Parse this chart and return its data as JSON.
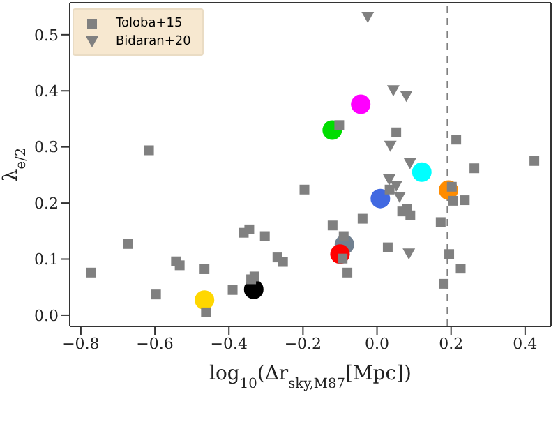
{
  "chart_data": {
    "type": "scatter",
    "xlabel": "log$_{10}$(Δr$_{sky,M87}$[Mpc])",
    "ylabel": "λ$_{e/2}$",
    "xlim": [
      -0.83,
      0.47
    ],
    "ylim": [
      -0.02,
      0.557
    ],
    "xticks": [
      {
        "value": -0.8,
        "label": "−0.8"
      },
      {
        "value": -0.6,
        "label": "−0.6"
      },
      {
        "value": -0.4,
        "label": "−0.4"
      },
      {
        "value": -0.2,
        "label": "−0.2"
      },
      {
        "value": 0,
        "label": "0.0"
      },
      {
        "value": 0.2,
        "label": "0.2"
      },
      {
        "value": 0.4,
        "label": "0.4"
      }
    ],
    "yticks": [
      {
        "value": 0,
        "label": "0.0"
      },
      {
        "value": 0.1,
        "label": "0.1"
      },
      {
        "value": 0.2,
        "label": "0.2"
      },
      {
        "value": 0.3,
        "label": "0.3"
      },
      {
        "value": 0.4,
        "label": "0.4"
      },
      {
        "value": 0.5,
        "label": "0.5"
      }
    ],
    "grid": false,
    "legend": "top left",
    "ref_lines": [
      {
        "axis": "x",
        "value": 0.19,
        "color": "#808080",
        "line_style": "dashed"
      }
    ],
    "series": [
      {
        "name": "Toloba+15",
        "marker": "square",
        "color": "#808080",
        "x": [
          -0.616,
          -0.102,
          0.052,
          0.214,
          0.425,
          0.263,
          -0.196,
          -0.673,
          -0.772,
          -0.543,
          -0.533,
          -0.466,
          -0.597,
          -0.462,
          -0.39,
          -0.36,
          -0.345,
          -0.303,
          -0.269,
          -0.254,
          -0.34,
          -0.331,
          0.034,
          0.202,
          0.206,
          0.237,
          0.081,
          0.068,
          0.09,
          -0.039,
          -0.12,
          0.172,
          -0.09,
          0.029,
          0.195,
          -0.093,
          0.226,
          -0.08,
          0.18
        ],
        "values": [
          0.294,
          0.339,
          0.326,
          0.313,
          0.275,
          0.262,
          0.224,
          0.127,
          0.076,
          0.096,
          0.089,
          0.082,
          0.037,
          0.005,
          0.045,
          0.147,
          0.153,
          0.141,
          0.103,
          0.095,
          0.064,
          0.069,
          0.224,
          0.229,
          0.204,
          0.205,
          0.19,
          0.185,
          0.178,
          0.172,
          0.16,
          0.166,
          0.141,
          0.121,
          0.109,
          0.101,
          0.083,
          0.076,
          0.056
        ]
      },
      {
        "name": "Bidaran+20",
        "marker": "triangle",
        "color": "#808080",
        "x": [
          -0.025,
          0.044,
          0.079,
          0.036,
          0.089,
          0.033,
          0.052,
          0.061,
          0.086
        ],
        "values": [
          0.531,
          0.4,
          0.39,
          0.301,
          0.27,
          0.241,
          0.23,
          0.21,
          0.109
        ]
      },
      {
        "marker": "circle",
        "x": [
          -0.044,
          -0.121,
          0.121,
          -0.466,
          -0.333,
          0.193,
          0.009,
          -0.088,
          -0.1
        ],
        "values": [
          0.376,
          0.33,
          0.255,
          0.027,
          0.046,
          0.223,
          0.208,
          0.126,
          0.109
        ],
        "colors": [
          "#ff00ff",
          "#00dd00",
          "#00ffff",
          "#ffd700",
          "#000000",
          "#ff8c00",
          "#4169e1",
          "#708090",
          "#ff0000"
        ]
      }
    ]
  }
}
